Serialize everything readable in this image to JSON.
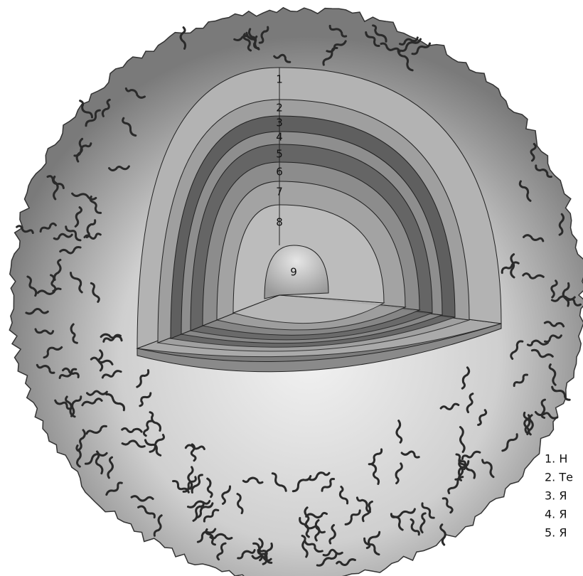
{
  "diagram": {
    "layer_labels": [
      "1",
      "2",
      "3",
      "4",
      "5",
      "6",
      "7",
      "8",
      "9"
    ]
  },
  "legend": [
    "1. Н",
    "2. Те",
    "3. Я",
    "4. Я",
    "5. Я"
  ]
}
